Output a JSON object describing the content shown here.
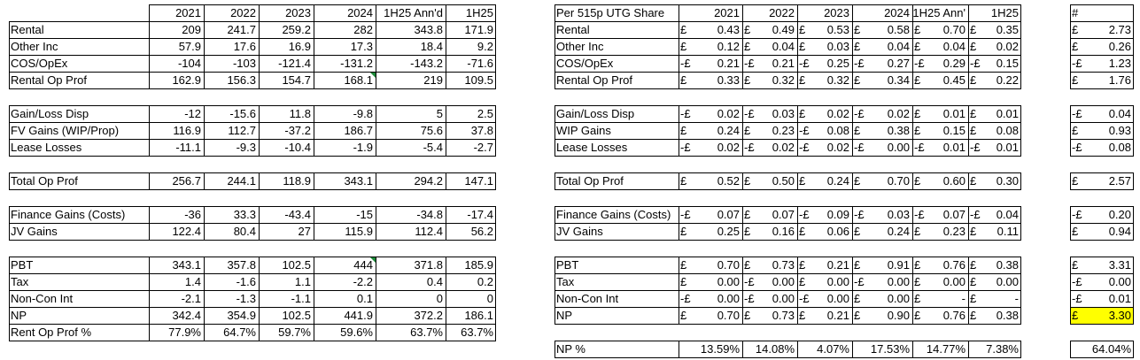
{
  "left": {
    "years": [
      "2021",
      "2022",
      "2023",
      "2024",
      "1H25 Ann'd",
      "1H25"
    ],
    "groups": [
      [
        {
          "label": "Rental",
          "values": [
            "209",
            "241.7",
            "259.2",
            "282",
            "343.8",
            "171.9"
          ]
        },
        {
          "label": "Other Inc",
          "values": [
            "57.9",
            "17.6",
            "16.9",
            "17.3",
            "18.4",
            "9.2"
          ]
        },
        {
          "label": "COS/OpEx",
          "values": [
            "-104",
            "-103",
            "-121.4",
            "-131.2",
            "-143.2",
            "-71.6"
          ]
        },
        {
          "label": "Rental Op Prof",
          "values": [
            "162.9",
            "156.3",
            "154.7",
            "168.1",
            "219",
            "109.5"
          ]
        }
      ],
      [
        {
          "label": "Gain/Loss Disp",
          "values": [
            "-12",
            "-15.6",
            "11.8",
            "-9.8",
            "5",
            "2.5"
          ]
        },
        {
          "label": "FV Gains (WIP/Prop)",
          "values": [
            "116.9",
            "112.7",
            "-37.2",
            "186.7",
            "75.6",
            "37.8"
          ]
        },
        {
          "label": "Lease Losses",
          "values": [
            "-11.1",
            "-9.3",
            "-10.4",
            "-1.9",
            "-5.4",
            "-2.7"
          ]
        }
      ],
      [
        {
          "label": "Total Op Prof",
          "values": [
            "256.7",
            "244.1",
            "118.9",
            "343.1",
            "294.2",
            "147.1"
          ]
        }
      ],
      [
        {
          "label": "Finance Gains (Costs)",
          "values": [
            "-36",
            "33.3",
            "-43.4",
            "-15",
            "-34.8",
            "-17.4"
          ]
        },
        {
          "label": "JV Gains",
          "values": [
            "122.4",
            "80.4",
            "27",
            "115.9",
            "112.4",
            "56.2"
          ]
        }
      ],
      [
        {
          "label": "PBT",
          "values": [
            "343.1",
            "357.8",
            "102.5",
            "444",
            "371.8",
            "185.9"
          ]
        },
        {
          "label": "Tax",
          "values": [
            "1.4",
            "-1.6",
            "1.1",
            "-2.2",
            "0.4",
            "0.2"
          ]
        },
        {
          "label": "Non-Con Int",
          "values": [
            "-2.1",
            "-1.3",
            "-1.1",
            "0.1",
            "0",
            "0"
          ]
        },
        {
          "label": "NP",
          "values": [
            "342.4",
            "354.9",
            "102.5",
            "441.9",
            "372.2",
            "186.1"
          ]
        },
        {
          "label": "Rent Op Prof %",
          "values": [
            "77.9%",
            "64.7%",
            "59.7%",
            "59.6%",
            "63.7%",
            "63.7%"
          ]
        }
      ]
    ]
  },
  "right": {
    "title": "Per 515p UTG Share",
    "years": [
      "2021",
      "2022",
      "2023",
      "2024",
      "1H25 Ann'",
      "1H25"
    ],
    "hash": "#",
    "groups": [
      [
        {
          "label": "Rental",
          "cells": [
            [
              "£",
              "0.43"
            ],
            [
              "£",
              "0.49"
            ],
            [
              "£",
              "0.53"
            ],
            [
              "£",
              "0.58"
            ],
            [
              "£",
              "0.70"
            ],
            [
              "£",
              "0.35"
            ]
          ],
          "total": [
            "£",
            "2.73"
          ]
        },
        {
          "label": "Other Inc",
          "cells": [
            [
              "£",
              "0.12"
            ],
            [
              "£",
              "0.04"
            ],
            [
              "£",
              "0.03"
            ],
            [
              "£",
              "0.04"
            ],
            [
              "£",
              "0.04"
            ],
            [
              "£",
              "0.02"
            ]
          ],
          "total": [
            "£",
            "0.26"
          ]
        },
        {
          "label": "COS/OpEx",
          "cells": [
            [
              "-£",
              "0.21"
            ],
            [
              "-£",
              "0.21"
            ],
            [
              "-£",
              "0.25"
            ],
            [
              "-£",
              "0.27"
            ],
            [
              "-£",
              "0.29"
            ],
            [
              "-£",
              "0.15"
            ]
          ],
          "total": [
            "-£",
            "1.23"
          ]
        },
        {
          "label": "Rental Op Prof",
          "cells": [
            [
              "£",
              "0.33"
            ],
            [
              "£",
              "0.32"
            ],
            [
              "£",
              "0.32"
            ],
            [
              "£",
              "0.34"
            ],
            [
              "£",
              "0.45"
            ],
            [
              "£",
              "0.22"
            ]
          ],
          "total": [
            "£",
            "1.76"
          ]
        }
      ],
      [
        {
          "label": "Gain/Loss Disp",
          "cells": [
            [
              "-£",
              "0.02"
            ],
            [
              "-£",
              "0.03"
            ],
            [
              "£",
              "0.02"
            ],
            [
              "-£",
              "0.02"
            ],
            [
              "£",
              "0.01"
            ],
            [
              "£",
              "0.01"
            ]
          ],
          "total": [
            "-£",
            "0.04"
          ]
        },
        {
          "label": "WIP Gains",
          "cells": [
            [
              "£",
              "0.24"
            ],
            [
              "£",
              "0.23"
            ],
            [
              "-£",
              "0.08"
            ],
            [
              "£",
              "0.38"
            ],
            [
              "£",
              "0.15"
            ],
            [
              "£",
              "0.08"
            ]
          ],
          "total": [
            "£",
            "0.93"
          ]
        },
        {
          "label": "Lease Losses",
          "cells": [
            [
              "-£",
              "0.02"
            ],
            [
              "-£",
              "0.02"
            ],
            [
              "-£",
              "0.02"
            ],
            [
              "-£",
              "0.00"
            ],
            [
              "-£",
              "0.01"
            ],
            [
              "-£",
              "0.01"
            ]
          ],
          "total": [
            "-£",
            "0.08"
          ]
        }
      ],
      [
        {
          "label": "Total Op Prof",
          "cells": [
            [
              "£",
              "0.52"
            ],
            [
              "£",
              "0.50"
            ],
            [
              "£",
              "0.24"
            ],
            [
              "£",
              "0.70"
            ],
            [
              "£",
              "0.60"
            ],
            [
              "£",
              "0.30"
            ]
          ],
          "total": [
            "£",
            "2.57"
          ]
        }
      ],
      [
        {
          "label": "Finance Gains (Costs)",
          "cells": [
            [
              "-£",
              "0.07"
            ],
            [
              "£",
              "0.07"
            ],
            [
              "-£",
              "0.09"
            ],
            [
              "-£",
              "0.03"
            ],
            [
              "-£",
              "0.07"
            ],
            [
              "-£",
              "0.04"
            ]
          ],
          "total": [
            "-£",
            "0.20"
          ]
        },
        {
          "label": "JV Gains",
          "cells": [
            [
              "£",
              "0.25"
            ],
            [
              "£",
              "0.16"
            ],
            [
              "£",
              "0.06"
            ],
            [
              "£",
              "0.24"
            ],
            [
              "£",
              "0.23"
            ],
            [
              "£",
              "0.11"
            ]
          ],
          "total": [
            "£",
            "0.94"
          ]
        }
      ],
      [
        {
          "label": "PBT",
          "cells": [
            [
              "£",
              "0.70"
            ],
            [
              "£",
              "0.73"
            ],
            [
              "£",
              "0.21"
            ],
            [
              "£",
              "0.91"
            ],
            [
              "£",
              "0.76"
            ],
            [
              "£",
              "0.38"
            ]
          ],
          "total": [
            "£",
            "3.31"
          ]
        },
        {
          "label": "Tax",
          "cells": [
            [
              "£",
              "0.00"
            ],
            [
              "-£",
              "0.00"
            ],
            [
              "£",
              "0.00"
            ],
            [
              "-£",
              "0.00"
            ],
            [
              "£",
              "0.00"
            ],
            [
              "£",
              "0.00"
            ]
          ],
          "total": [
            "-£",
            "0.00"
          ]
        },
        {
          "label": "Non-Con Int",
          "cells": [
            [
              "-£",
              "0.00"
            ],
            [
              "-£",
              "0.00"
            ],
            [
              "-£",
              "0.00"
            ],
            [
              "£",
              "0.00"
            ],
            [
              "£",
              "-"
            ],
            [
              "£",
              "-"
            ]
          ],
          "total": [
            "-£",
            "0.01"
          ]
        },
        {
          "label": "NP",
          "cells": [
            [
              "£",
              "0.70"
            ],
            [
              "£",
              "0.73"
            ],
            [
              "£",
              "0.21"
            ],
            [
              "£",
              "0.90"
            ],
            [
              "£",
              "0.76"
            ],
            [
              "£",
              "0.38"
            ]
          ],
          "total": [
            "£",
            "3.30"
          ]
        }
      ]
    ],
    "np_pct": {
      "label": "NP %",
      "values": [
        "13.59%",
        "14.08%",
        "4.07%",
        "17.53%",
        "14.77%",
        "7.38%"
      ],
      "total": "64.04%"
    }
  },
  "colors": {
    "highlight": "#ffff00",
    "marker": "#1e8a3a"
  }
}
